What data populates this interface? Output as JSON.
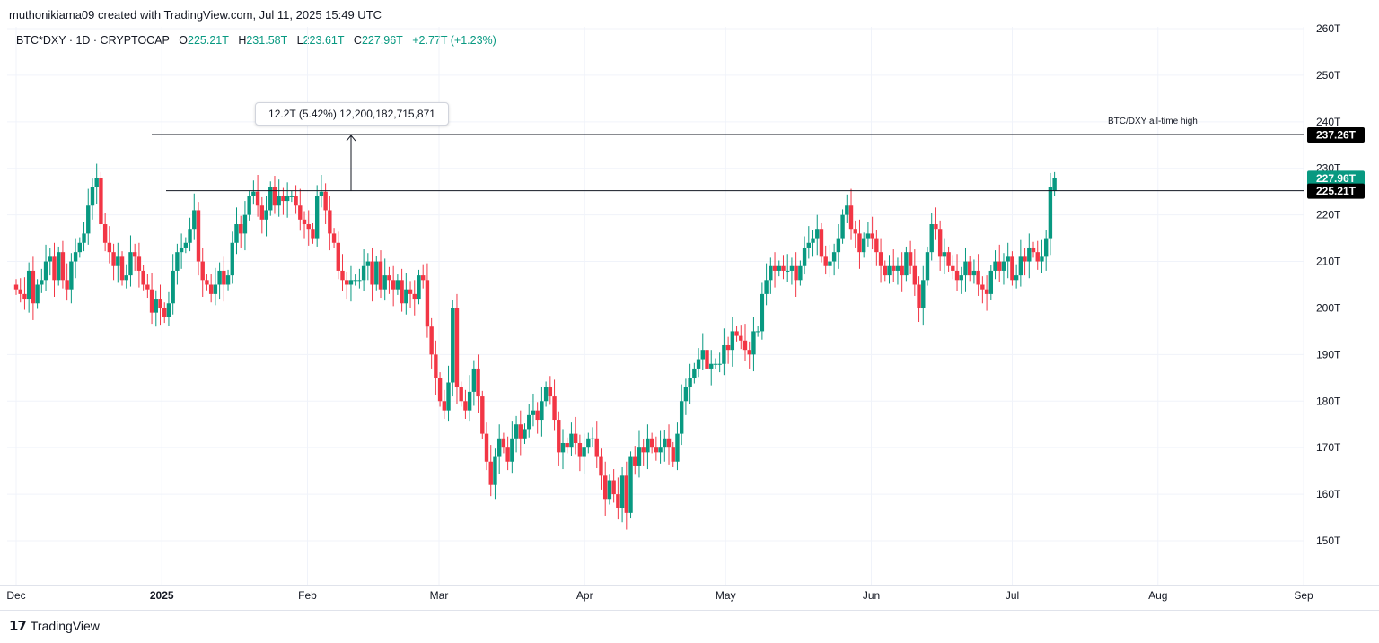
{
  "header": {
    "created_by": "muthonikiama09 created with TradingView.com, Jul 11, 2025 15:49 UTC"
  },
  "symbol": {
    "name": "BTC*DXY · 1D · CRYPTOCAP",
    "o_label": "O",
    "o_value": "225.21T",
    "h_label": "H",
    "h_value": "231.58T",
    "l_label": "L",
    "l_value": "223.61T",
    "c_label": "C",
    "c_value": "227.96T",
    "change": "+2.77T (+1.23%)"
  },
  "measure": {
    "text": "12.2T (5.42%) 12,200,182,715,871"
  },
  "annotations": {
    "ath_text": "BTC/DXY all-time high"
  },
  "footer": {
    "brand": "TradingView"
  },
  "colors": {
    "up": "#089981",
    "down": "#f23645",
    "grid": "#f0f3fa",
    "line": "#131722"
  },
  "chart_data": {
    "type": "candlestick",
    "title": "",
    "xlabel": "",
    "ylabel": "",
    "ylim": [
      145,
      262
    ],
    "y_unit": "T",
    "y_ticks": [
      "260T",
      "250T",
      "240T",
      "230T",
      "220T",
      "210T",
      "200T",
      "190T",
      "180T",
      "170T",
      "160T",
      "150T"
    ],
    "y_tick_values": [
      260,
      250,
      240,
      230,
      220,
      210,
      200,
      190,
      180,
      170,
      160,
      150
    ],
    "x_ticks": [
      {
        "label": "Dec",
        "date": "2024-12-01"
      },
      {
        "label": "2025",
        "date": "2025-01-01"
      },
      {
        "label": "Feb",
        "date": "2025-02-01"
      },
      {
        "label": "Mar",
        "date": "2025-03-01"
      },
      {
        "label": "Apr",
        "date": "2025-04-01"
      },
      {
        "label": "May",
        "date": "2025-05-01"
      },
      {
        "label": "Jun",
        "date": "2025-06-01"
      },
      {
        "label": "Jul",
        "date": "2025-07-01"
      },
      {
        "label": "Aug",
        "date": "2025-08-01"
      },
      {
        "label": "Sep",
        "date": "2025-09-01"
      }
    ],
    "first_date": "2024-12-01",
    "horizontal_lines": [
      {
        "value": 237.26,
        "label": "237.26T"
      },
      {
        "value": 225.21,
        "label": "225.21T"
      }
    ],
    "last_price": {
      "value": 227.96,
      "label": "227.96T"
    },
    "grid": true,
    "candles_close": [
      204,
      203,
      202,
      208,
      201,
      205,
      206,
      210,
      211,
      206,
      212,
      206,
      204,
      210,
      212,
      214,
      216,
      222,
      226,
      228,
      218,
      214,
      212,
      209,
      211,
      206,
      207,
      212,
      211,
      208,
      205,
      204,
      199,
      202,
      200,
      198,
      201,
      208,
      212,
      213,
      214,
      217,
      221,
      210,
      206,
      205,
      203,
      205,
      208,
      205,
      207,
      214,
      218,
      216,
      220,
      224,
      225,
      222,
      219,
      221,
      226,
      222,
      224,
      223,
      224,
      224,
      222,
      219,
      218,
      217,
      215,
      224,
      225,
      221,
      216,
      214,
      208,
      206,
      205,
      206,
      206,
      206,
      209,
      210,
      205,
      210,
      204,
      207,
      206,
      204,
      206,
      201,
      204,
      203,
      202,
      207,
      206,
      196,
      190,
      185,
      180,
      178,
      184,
      200,
      183,
      180,
      178,
      182,
      187,
      181,
      173,
      167,
      162,
      168,
      172,
      170,
      167,
      172,
      175,
      172,
      174,
      177,
      178,
      176,
      180,
      183,
      181,
      176,
      169,
      171,
      170,
      173,
      171,
      168,
      170,
      172,
      172,
      168,
      164,
      159,
      163,
      160,
      157,
      164,
      156,
      168,
      166,
      170,
      169,
      172,
      170,
      169,
      170,
      172,
      170,
      167,
      173,
      180,
      183,
      185,
      187,
      189,
      191,
      187,
      188,
      188,
      188,
      192,
      191,
      195,
      194,
      193,
      191,
      190,
      195,
      195,
      203,
      206,
      209,
      208,
      209,
      208,
      208,
      209,
      206,
      209,
      213,
      214,
      215,
      217,
      211,
      209,
      210,
      212,
      215,
      220,
      222,
      217,
      216,
      212,
      215,
      216,
      215,
      212,
      209,
      207,
      209,
      208,
      209,
      207,
      212,
      209,
      205,
      200,
      206,
      212,
      218,
      217,
      211,
      212,
      209,
      208,
      206,
      207,
      210,
      207,
      208,
      205,
      204,
      203,
      208,
      210,
      208,
      210,
      211,
      206,
      207,
      211,
      210,
      213,
      212,
      210,
      211,
      215,
      226,
      228
    ]
  }
}
